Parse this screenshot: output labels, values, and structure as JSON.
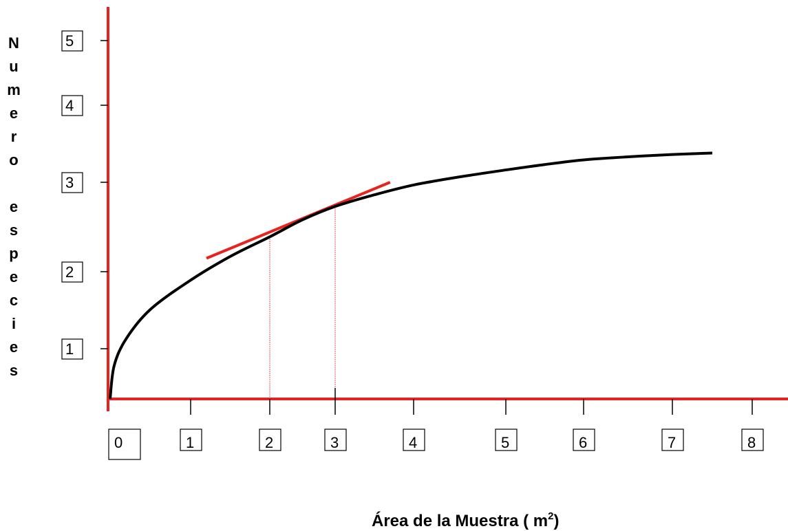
{
  "chart_data": {
    "type": "line",
    "title": "",
    "xlabel": "Área de la Muestra ( m2)",
    "xlabel_main": "Área de la Muestra ( m",
    "xlabel_sup": "2",
    "xlabel_end": ")",
    "ylabel": "Numero especies",
    "ylabel_letters": [
      "N",
      "u",
      "m",
      "e",
      "r",
      "o",
      "",
      "e",
      "s",
      "p",
      "e",
      "c",
      "i",
      "e",
      "s"
    ],
    "x_ticks": [
      "0",
      "1",
      "2",
      "3",
      "4",
      "5",
      "6",
      "7",
      "8"
    ],
    "y_ticks": [
      "1",
      "2",
      "3",
      "4",
      "5"
    ],
    "xlim": [
      0,
      8.4
    ],
    "ylim": [
      0.35,
      5.5
    ],
    "grid": false,
    "colors": {
      "axis": "#e8231f",
      "curve": "#000000",
      "tangent": "#e8231f",
      "guide": "#e8231f"
    },
    "curve": {
      "x": [
        0.0,
        0.05,
        0.2,
        0.5,
        1.0,
        1.5,
        2.0,
        2.5,
        3.0,
        3.5,
        4.0,
        4.5,
        5.0,
        5.5,
        6.0,
        6.5,
        7.0,
        7.5
      ],
      "y": [
        0.35,
        0.78,
        1.13,
        1.51,
        1.89,
        2.17,
        2.39,
        2.58,
        2.73,
        2.86,
        2.97,
        3.07,
        3.16,
        3.23,
        3.29,
        3.33,
        3.36,
        3.38
      ]
    },
    "tangent": {
      "x": [
        1.2,
        3.7
      ],
      "y": [
        2.15,
        3.0
      ]
    },
    "guides": [
      {
        "x": 2.0,
        "y": 2.39
      },
      {
        "x": 3.0,
        "y": 2.73
      }
    ]
  }
}
